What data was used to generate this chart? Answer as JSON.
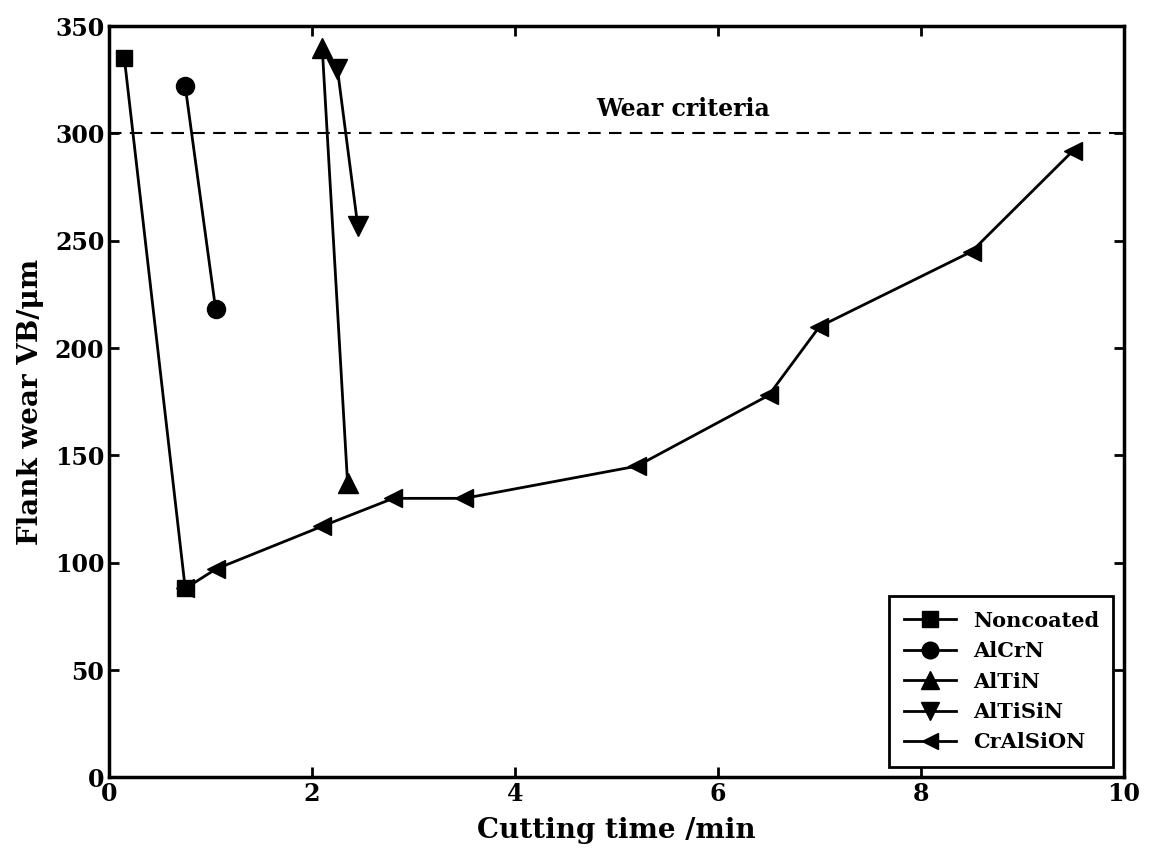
{
  "title": "",
  "xlabel": "Cutting time /min",
  "ylabel": "Flank wear VB/μm",
  "xlim": [
    0,
    10
  ],
  "ylim": [
    0,
    350
  ],
  "xticks": [
    0,
    2,
    4,
    6,
    8,
    10
  ],
  "yticks": [
    0,
    50,
    100,
    150,
    200,
    250,
    300,
    350
  ],
  "wear_criteria_y": 300,
  "wear_criteria_label": "Wear criteria",
  "series": {
    "Noncoated": {
      "x": [
        0.15,
        0.75
      ],
      "y": [
        335,
        88
      ],
      "marker": "s",
      "linestyle": "-",
      "color": "#000000",
      "markersize": 12,
      "linewidth": 2.0
    },
    "AlCrN": {
      "x": [
        0.75,
        1.05
      ],
      "y": [
        322,
        218
      ],
      "marker": "o",
      "linestyle": "-",
      "color": "#000000",
      "markersize": 13,
      "linewidth": 2.0
    },
    "AlTiN": {
      "x": [
        2.1,
        2.35
      ],
      "y": [
        340,
        137
      ],
      "marker": "^",
      "linestyle": "-",
      "color": "#000000",
      "markersize": 14,
      "linewidth": 2.0
    },
    "AlTiSiN": {
      "x": [
        2.25,
        2.45
      ],
      "y": [
        330,
        257
      ],
      "marker": "v",
      "linestyle": "-",
      "color": "#000000",
      "markersize": 14,
      "linewidth": 2.0
    },
    "CrAlSiON": {
      "x": [
        0.75,
        1.05,
        2.1,
        2.8,
        3.5,
        5.2,
        6.5,
        7.0,
        8.5,
        9.5
      ],
      "y": [
        88,
        97,
        117,
        130,
        130,
        145,
        178,
        210,
        245,
        292
      ],
      "marker": "<",
      "linestyle": "-",
      "color": "#000000",
      "markersize": 13,
      "linewidth": 2.0
    }
  },
  "legend_order": [
    "Noncoated",
    "AlCrN",
    "AlTiN",
    "AlTiSiN",
    "CrAlSiON"
  ],
  "legend_labels": [
    "Noncoated",
    "AlCrN",
    "AlTiN",
    "AlTiSiN",
    "CrAlSiON"
  ],
  "background_color": "#ffffff",
  "font_color": "#000000"
}
